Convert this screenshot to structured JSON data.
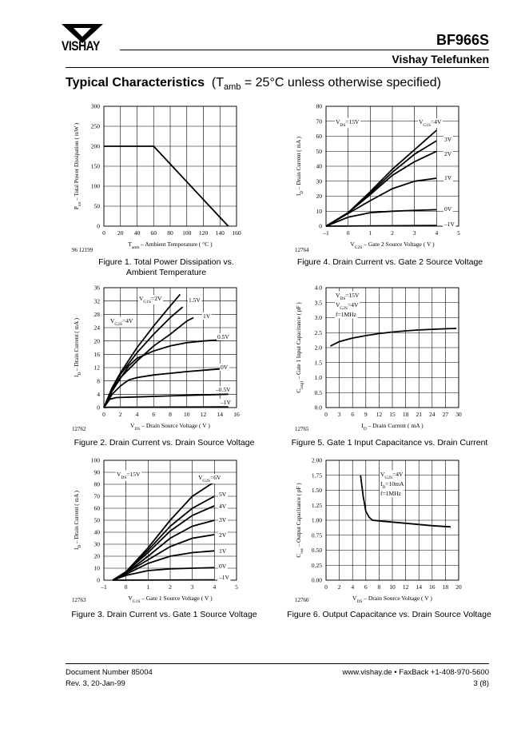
{
  "header": {
    "brand_logo": "VISHAY",
    "part_number": "BF966S",
    "company": "Vishay Telefunken"
  },
  "section": {
    "title": "Typical Characteristics",
    "condition_prefix": "(T",
    "condition_sub": "amb",
    "condition_suffix": " = 25°C unless otherwise specified)"
  },
  "figures": [
    {
      "id": "fig1",
      "file_no": "96 12199",
      "caption_line1": "Figure 1.  Total Power Dissipation vs.",
      "caption_line2": "Ambient Temperature"
    },
    {
      "id": "fig2",
      "file_no": "12762",
      "caption_line1": "Figure 2.  Drain Current vs. Drain Source Voltage"
    },
    {
      "id": "fig3",
      "file_no": "12763",
      "caption_line1": "Figure 3.  Drain Current vs. Gate 1 Source Voltage"
    },
    {
      "id": "fig4",
      "file_no": "12764",
      "caption_line1": "Figure 4.  Drain Current vs. Gate 2 Source Voltage"
    },
    {
      "id": "fig5",
      "file_no": "12765",
      "caption_line1": "Figure 5.  Gate 1 Input Capacitance vs. Drain Current"
    },
    {
      "id": "fig6",
      "file_no": "12766",
      "caption_line1": "Figure 6.  Output Capacitance vs. Drain Source Voltage"
    }
  ],
  "footer": {
    "doc_number": "Document Number 85004",
    "revision": "Rev. 3, 20-Jan-99",
    "contact": "www.vishay.de • FaxBack +1-408-970-5600",
    "page": "3 (8)"
  },
  "chart_data": [
    {
      "id": "fig1",
      "type": "line",
      "xlabel": "T_amb – Ambient Temperature ( °C )",
      "ylabel": "P_tot – Total Power Dissipation ( mW )",
      "xlim": [
        0,
        160
      ],
      "ylim": [
        0,
        300
      ],
      "xticks": [
        0,
        20,
        40,
        60,
        80,
        100,
        120,
        140,
        160
      ],
      "yticks": [
        0,
        50,
        100,
        150,
        200,
        250,
        300
      ],
      "series": [
        {
          "points": [
            [
              0,
              200
            ],
            [
              60,
              200
            ],
            [
              150,
              0
            ]
          ]
        }
      ],
      "annotations": []
    },
    {
      "id": "fig2",
      "type": "line",
      "xlabel": "V_DS – Drain Source Voltage ( V )",
      "ylabel": "I_D – Drain Current ( mA )",
      "xlim": [
        0,
        16
      ],
      "ylim": [
        0,
        36
      ],
      "xticks": [
        0,
        2,
        4,
        6,
        8,
        10,
        12,
        14,
        16
      ],
      "yticks": [
        0,
        4,
        8,
        12,
        16,
        20,
        24,
        28,
        32,
        36
      ],
      "series": [
        {
          "name": "V_G1S=2V",
          "points": [
            [
              0,
              0
            ],
            [
              1,
              6
            ],
            [
              2,
              10.5
            ],
            [
              4,
              18
            ],
            [
              6,
              24.5
            ],
            [
              8,
              30.5
            ],
            [
              9.2,
              34
            ]
          ]
        },
        {
          "name": "1.5V",
          "points": [
            [
              0,
              0
            ],
            [
              1,
              5.8
            ],
            [
              2,
              10
            ],
            [
              4,
              16.5
            ],
            [
              6,
              22
            ],
            [
              8,
              27
            ],
            [
              9.5,
              30.2
            ]
          ]
        },
        {
          "name": "1V",
          "points": [
            [
              0,
              0
            ],
            [
              1,
              5.5
            ],
            [
              2,
              9
            ],
            [
              4,
              14
            ],
            [
              6,
              18.5
            ],
            [
              8,
              22
            ],
            [
              10,
              26
            ],
            [
              10.8,
              27
            ]
          ]
        },
        {
          "name": "0.5V",
          "points": [
            [
              0,
              0
            ],
            [
              1,
              5
            ],
            [
              2,
              8.8
            ],
            [
              3,
              12.5
            ],
            [
              4,
              14.8
            ],
            [
              6,
              17
            ],
            [
              8,
              18.5
            ],
            [
              10,
              19.5
            ],
            [
              12,
              20
            ],
            [
              15,
              20.5
            ]
          ]
        },
        {
          "name": "0V",
          "points": [
            [
              0,
              0
            ],
            [
              1,
              4
            ],
            [
              2,
              6.5
            ],
            [
              3,
              8.3
            ],
            [
              4,
              9
            ],
            [
              6,
              9.8
            ],
            [
              8,
              10.3
            ],
            [
              10,
              10.8
            ],
            [
              12,
              11.2
            ],
            [
              15,
              11.8
            ]
          ]
        },
        {
          "name": "–0.5V",
          "points": [
            [
              0,
              0
            ],
            [
              0.7,
              2.5
            ],
            [
              1.5,
              3
            ],
            [
              4,
              3.2
            ],
            [
              8,
              3.5
            ],
            [
              12,
              3.8
            ],
            [
              15,
              4
            ]
          ]
        },
        {
          "name": "–1V",
          "points": [
            [
              0,
              0
            ],
            [
              0.5,
              0.1
            ],
            [
              15,
              0.2
            ]
          ]
        }
      ],
      "annotations": [
        "V_G2S=4V"
      ]
    },
    {
      "id": "fig3",
      "type": "line",
      "xlabel": "V_G1S – Gate 1 Source Voltage ( V )",
      "ylabel": "I_D – Drain Current ( mA )",
      "xlim": [
        -1,
        5
      ],
      "ylim": [
        0,
        100
      ],
      "xticks": [
        -1,
        0,
        1,
        2,
        3,
        4,
        5
      ],
      "yticks": [
        0,
        10,
        20,
        30,
        40,
        50,
        60,
        70,
        80,
        90,
        100
      ],
      "series": [
        {
          "name": "V_G2S=6V",
          "points": [
            [
              -0.6,
              0
            ],
            [
              0,
              7
            ],
            [
              1,
              27
            ],
            [
              2,
              50
            ],
            [
              3,
              70
            ],
            [
              4,
              82
            ]
          ]
        },
        {
          "name": "5V",
          "points": [
            [
              -0.6,
              0
            ],
            [
              0,
              7
            ],
            [
              1,
              25
            ],
            [
              2,
              45
            ],
            [
              3,
              60
            ],
            [
              4,
              70
            ]
          ]
        },
        {
          "name": "4V",
          "points": [
            [
              -0.6,
              0
            ],
            [
              0,
              7
            ],
            [
              1,
              23
            ],
            [
              2,
              41
            ],
            [
              3,
              54
            ],
            [
              4,
              62
            ]
          ]
        },
        {
          "name": "3V",
          "points": [
            [
              -0.6,
              0
            ],
            [
              0,
              6
            ],
            [
              1,
              20
            ],
            [
              2,
              35
            ],
            [
              3,
              45
            ],
            [
              4,
              50
            ]
          ]
        },
        {
          "name": "2V",
          "points": [
            [
              -0.6,
              0
            ],
            [
              0,
              6
            ],
            [
              1,
              17
            ],
            [
              2,
              28
            ],
            [
              3,
              35
            ],
            [
              4,
              38
            ]
          ]
        },
        {
          "name": "1V",
          "points": [
            [
              -0.6,
              0
            ],
            [
              0,
              5
            ],
            [
              1,
              14
            ],
            [
              2,
              20
            ],
            [
              3,
              23
            ],
            [
              4,
              24.5
            ]
          ]
        },
        {
          "name": "0V",
          "points": [
            [
              -0.6,
              0
            ],
            [
              0,
              4
            ],
            [
              1,
              8
            ],
            [
              2,
              9.5
            ],
            [
              3,
              10
            ],
            [
              4,
              10.5
            ]
          ]
        },
        {
          "name": "–1V",
          "points": [
            [
              -0.6,
              0
            ],
            [
              4,
              0.3
            ]
          ]
        }
      ],
      "annotations": [
        "V_DS=15V"
      ]
    },
    {
      "id": "fig4",
      "type": "line",
      "xlabel": "V_G2S – Gate 2 Source Voltage ( V )",
      "ylabel": "I_D – Drain Current ( mA )",
      "xlim": [
        -1,
        5
      ],
      "ylim": [
        0,
        80
      ],
      "xticks": [
        -1,
        0,
        1,
        2,
        3,
        4,
        5
      ],
      "yticks": [
        0,
        10,
        20,
        30,
        40,
        50,
        60,
        70,
        80
      ],
      "series": [
        {
          "name": "V_G1S=4V",
          "points": [
            [
              -1,
              0
            ],
            [
              0,
              9
            ],
            [
              1,
              23
            ],
            [
              2,
              38
            ],
            [
              3,
              51
            ],
            [
              4,
              64
            ]
          ]
        },
        {
          "name": "3V",
          "points": [
            [
              -1,
              0
            ],
            [
              0,
              9
            ],
            [
              1,
              22
            ],
            [
              2,
              36
            ],
            [
              3,
              48
            ],
            [
              4,
              57
            ]
          ]
        },
        {
          "name": "2V",
          "points": [
            [
              -1,
              0
            ],
            [
              0,
              9
            ],
            [
              1,
              21
            ],
            [
              2,
              34
            ],
            [
              3,
              43
            ],
            [
              4,
              50
            ]
          ]
        },
        {
          "name": "1V",
          "points": [
            [
              -1,
              0
            ],
            [
              0,
              8.5
            ],
            [
              1,
              17
            ],
            [
              2,
              25
            ],
            [
              3,
              30
            ],
            [
              4,
              32
            ]
          ]
        },
        {
          "name": "0V",
          "points": [
            [
              -1,
              0
            ],
            [
              0,
              6
            ],
            [
              1,
              9
            ],
            [
              2,
              10
            ],
            [
              3,
              10.5
            ],
            [
              4,
              11
            ]
          ]
        },
        {
          "name": "–1V",
          "points": [
            [
              -1,
              0
            ],
            [
              4,
              0.5
            ]
          ]
        }
      ],
      "annotations": [
        "V_DS=15V"
      ]
    },
    {
      "id": "fig5",
      "type": "line",
      "xlabel": "I_D – Drain Current ( mA )",
      "ylabel": "C_issg1 – Gate 1 Input Capacitance ( pF )",
      "xlim": [
        0,
        30
      ],
      "ylim": [
        0,
        4.0
      ],
      "xticks": [
        0,
        3,
        6,
        9,
        12,
        15,
        18,
        21,
        24,
        27,
        30
      ],
      "yticks": [
        0,
        0.5,
        1.0,
        1.5,
        2.0,
        2.5,
        3.0,
        3.5,
        4.0
      ],
      "series": [
        {
          "points": [
            [
              1,
              2.05
            ],
            [
              3,
              2.2
            ],
            [
              6,
              2.32
            ],
            [
              9,
              2.4
            ],
            [
              12,
              2.47
            ],
            [
              15,
              2.52
            ],
            [
              18,
              2.56
            ],
            [
              21,
              2.59
            ],
            [
              24,
              2.61
            ],
            [
              27,
              2.63
            ],
            [
              29.5,
              2.64
            ]
          ]
        }
      ],
      "annotations": [
        "V_DS=15V",
        "V_G2S=4V",
        "f=1MHz"
      ]
    },
    {
      "id": "fig6",
      "type": "line",
      "xlabel": "V_DS – Drain Source Voltage ( V )",
      "ylabel": "C_oss – Output Capacitance ( pF )",
      "xlim": [
        0,
        20
      ],
      "ylim": [
        0,
        2.0
      ],
      "xticks": [
        0,
        2,
        4,
        6,
        8,
        10,
        12,
        14,
        16,
        18,
        20
      ],
      "yticks": [
        0,
        0.25,
        0.5,
        0.75,
        1.0,
        1.25,
        1.5,
        1.75,
        2.0
      ],
      "series": [
        {
          "points": [
            [
              5.2,
              1.75
            ],
            [
              5.6,
              1.4
            ],
            [
              6,
              1.15
            ],
            [
              6.5,
              1.05
            ],
            [
              7,
              1.0
            ],
            [
              8,
              0.99
            ],
            [
              10,
              0.97
            ],
            [
              12,
              0.95
            ],
            [
              14,
              0.93
            ],
            [
              16,
              0.91
            ],
            [
              18.8,
              0.89
            ]
          ]
        }
      ],
      "annotations": [
        "V_G2S=4V",
        "I_D=10mA",
        "f=1MHz"
      ]
    }
  ]
}
